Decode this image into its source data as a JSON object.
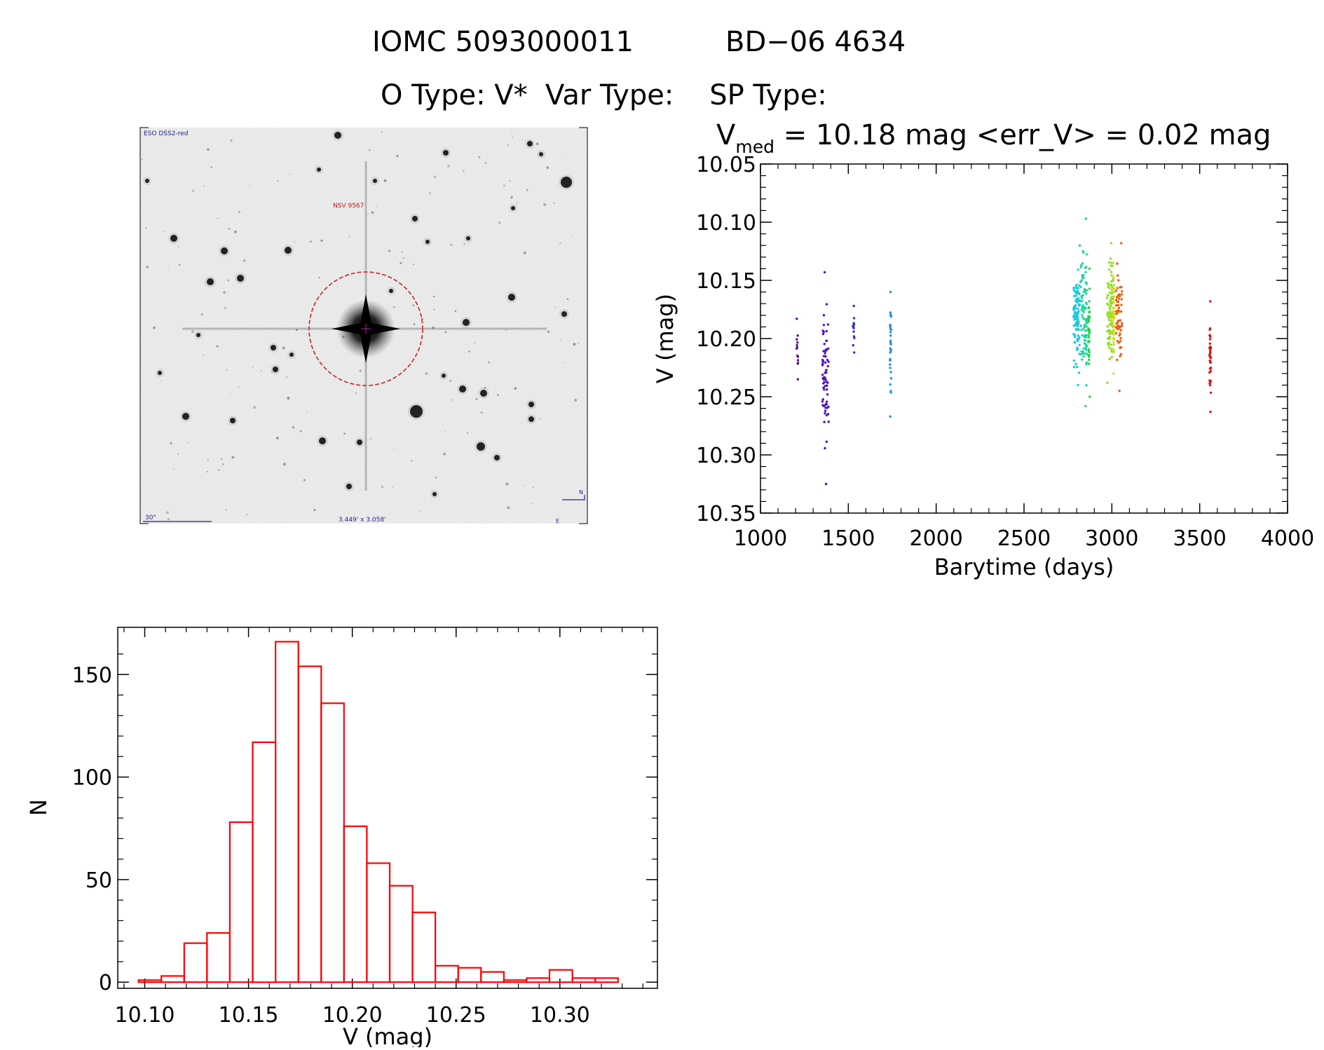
{
  "header": {
    "line1_id": "IOMC 5093000011",
    "line1_name": "BD−06  4634",
    "line2": "O Type: V*  Var Type:    SP Type:"
  },
  "finder_chart": {
    "survey_label": "ESO DSS2-red",
    "object_label": "NSV 9567",
    "scale_label": "30\"",
    "fov_label": "3.449' x 3.058'",
    "compass_north": "N",
    "compass_east": "E",
    "colors": {
      "circle": "#cc2222",
      "text_red": "#cc1111",
      "text_blue": "#222299"
    }
  },
  "chart_data": [
    {
      "type": "scatter",
      "title_prefix": "V",
      "title_sub": "med",
      "title_rest": " = 10.18 mag <err_V> = 0.02 mag",
      "xlabel": "Barytime (days)",
      "ylabel": "V (mag)",
      "xlim": [
        1000,
        4000
      ],
      "ylim": [
        10.35,
        10.05
      ],
      "y_inverted": true,
      "xticks": [
        1000,
        1500,
        2000,
        2500,
        3000,
        3500,
        4000
      ],
      "xtick_labels": [
        "1000",
        "1500",
        "2000",
        "2500",
        "3000",
        "3500",
        "4000"
      ],
      "yticks": [
        10.05,
        10.1,
        10.15,
        10.2,
        10.25,
        10.3,
        10.35
      ],
      "ytick_labels": [
        "10.05",
        "10.10",
        "10.15",
        "10.20",
        "10.25",
        "10.30",
        "10.35"
      ],
      "grid": false,
      "color_by_time": true,
      "groups": [
        {
          "x": 1210,
          "y_min": 10.183,
          "y_max": 10.235,
          "n": 14,
          "color": "#5a0e86"
        },
        {
          "x": 1370,
          "y_min": 10.143,
          "y_max": 10.325,
          "n": 70,
          "color": "#4a14c6"
        },
        {
          "x": 1530,
          "y_min": 10.172,
          "y_max": 10.212,
          "n": 14,
          "color": "#2a2ee0"
        },
        {
          "x": 1740,
          "y_min": 10.16,
          "y_max": 10.267,
          "n": 30,
          "color": "#1f8ce8"
        },
        {
          "x": 2800,
          "y_min": 10.12,
          "y_max": 10.24,
          "n": 100,
          "color": "#19c9df"
        },
        {
          "x": 2840,
          "y_min": 10.097,
          "y_max": 10.258,
          "n": 90,
          "color": "#1fd6a0"
        },
        {
          "x": 2870,
          "y_min": 10.14,
          "y_max": 10.25,
          "n": 40,
          "color": "#22d24a"
        },
        {
          "x": 2990,
          "y_min": 10.118,
          "y_max": 10.238,
          "n": 100,
          "color": "#8ee020"
        },
        {
          "x": 3010,
          "y_min": 10.135,
          "y_max": 10.23,
          "n": 40,
          "color": "#e8d418"
        },
        {
          "x": 3040,
          "y_min": 10.118,
          "y_max": 10.245,
          "n": 60,
          "color": "#ee5a10"
        },
        {
          "x": 3560,
          "y_min": 10.168,
          "y_max": 10.263,
          "n": 40,
          "color": "#dd1414"
        }
      ]
    },
    {
      "type": "bar",
      "histogram": true,
      "xlabel": "V (mag)",
      "ylabel": "N",
      "xlim": [
        10.087,
        10.347
      ],
      "ylim": [
        -3,
        173
      ],
      "xticks": [
        10.1,
        10.15,
        10.2,
        10.25,
        10.3
      ],
      "xtick_labels": [
        "10.10",
        "10.15",
        "10.20",
        "10.25",
        "10.30"
      ],
      "yticks": [
        0,
        50,
        100,
        150
      ],
      "ytick_labels": [
        "0",
        "50",
        "100",
        "150"
      ],
      "bin_width": 0.011,
      "bin_edges": [
        10.097,
        10.108,
        10.119,
        10.13,
        10.141,
        10.152,
        10.163,
        10.174,
        10.185,
        10.196,
        10.207,
        10.218,
        10.229,
        10.24,
        10.251,
        10.262,
        10.273,
        10.284,
        10.295,
        10.306,
        10.317,
        10.328
      ],
      "values": [
        1,
        3,
        19,
        24,
        78,
        117,
        166,
        154,
        136,
        76,
        58,
        47,
        34,
        8,
        7,
        5,
        1,
        2,
        6,
        2,
        2
      ],
      "color": "#ff0000"
    }
  ]
}
